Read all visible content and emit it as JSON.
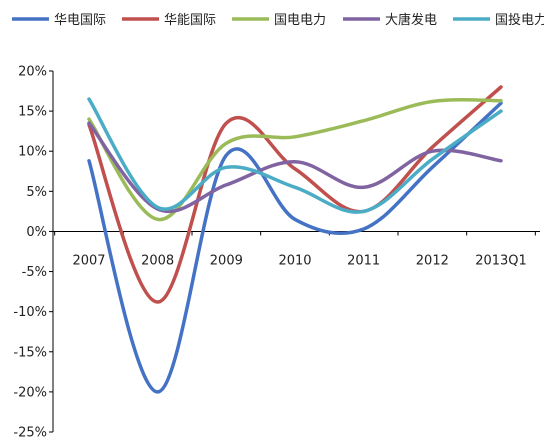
{
  "chart_data": {
    "type": "line",
    "categories": [
      "2007",
      "2008",
      "2009",
      "2010",
      "2011",
      "2012",
      "2013Q1"
    ],
    "series": [
      {
        "name": "华电国际",
        "color": "#4472C4",
        "values": [
          8.8,
          -20.0,
          9.5,
          1.5,
          0.3,
          8.0,
          16.0
        ]
      },
      {
        "name": "华能国际",
        "color": "#C0504D",
        "values": [
          13.3,
          -8.8,
          13.5,
          7.8,
          2.5,
          10.5,
          18.0
        ]
      },
      {
        "name": "国电电力",
        "color": "#9BBB59",
        "values": [
          14.0,
          1.5,
          11.0,
          11.8,
          13.8,
          16.2,
          16.3
        ]
      },
      {
        "name": "大唐发电",
        "color": "#8064A2",
        "values": [
          13.5,
          2.8,
          5.8,
          8.7,
          5.5,
          10.0,
          8.8
        ]
      },
      {
        "name": "国投电力",
        "color": "#4BACC6",
        "values": [
          16.5,
          3.0,
          8.0,
          5.5,
          2.5,
          9.0,
          15.0
        ]
      }
    ],
    "y_ticks": [
      "20%",
      "15%",
      "10%",
      "5%",
      "0%",
      "-5%",
      "-10%",
      "-15%",
      "-20%",
      "-25%"
    ],
    "ylim": [
      -25,
      20
    ],
    "xlabel": "",
    "ylabel": "",
    "title": "",
    "legend": "top",
    "grid": false
  }
}
